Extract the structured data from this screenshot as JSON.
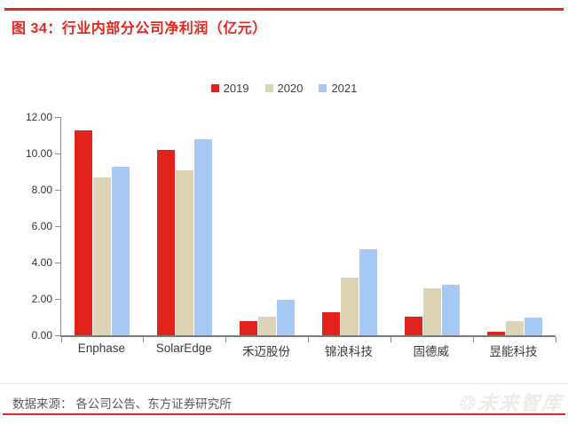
{
  "header": {
    "title": "图 34：行业内部分公司净利润（亿元）"
  },
  "footer": {
    "source": "数据来源： 各公司公告、东方证券研究所",
    "watermark": "未来智库"
  },
  "colors": {
    "accent_red": "#e8251d",
    "bar_2019": "#e2231b",
    "bar_2020": "#ddd4b6",
    "bar_2021": "#a6c9f6",
    "axis_gray": "#8c8c8c",
    "label_text": "#383838"
  },
  "chart_data": {
    "type": "bar",
    "title": "图 34：行业内部分公司净利润（亿元）",
    "categories": [
      "Enphase",
      "SolarEdge",
      "禾迈股份",
      "锦浪科技",
      "固德威",
      "昱能科技"
    ],
    "series": [
      {
        "name": "2019",
        "color": "#e2231b",
        "values": [
          11.25,
          10.2,
          0.8,
          1.25,
          1.04,
          0.22
        ]
      },
      {
        "name": "2020",
        "color": "#ddd4b6",
        "values": [
          8.7,
          9.1,
          1.04,
          3.18,
          2.6,
          0.78
        ]
      },
      {
        "name": "2021",
        "color": "#a6c9f6",
        "values": [
          9.25,
          10.8,
          1.95,
          4.73,
          2.8,
          1.0
        ]
      }
    ],
    "xlabel": "",
    "ylabel": "",
    "ylim": [
      0,
      12
    ],
    "ytick_step": 2,
    "ytick_labels": [
      "0.00",
      "2.00",
      "4.00",
      "6.00",
      "8.00",
      "10.00",
      "12.00"
    ],
    "legend_position": "top-center",
    "grid": false
  }
}
